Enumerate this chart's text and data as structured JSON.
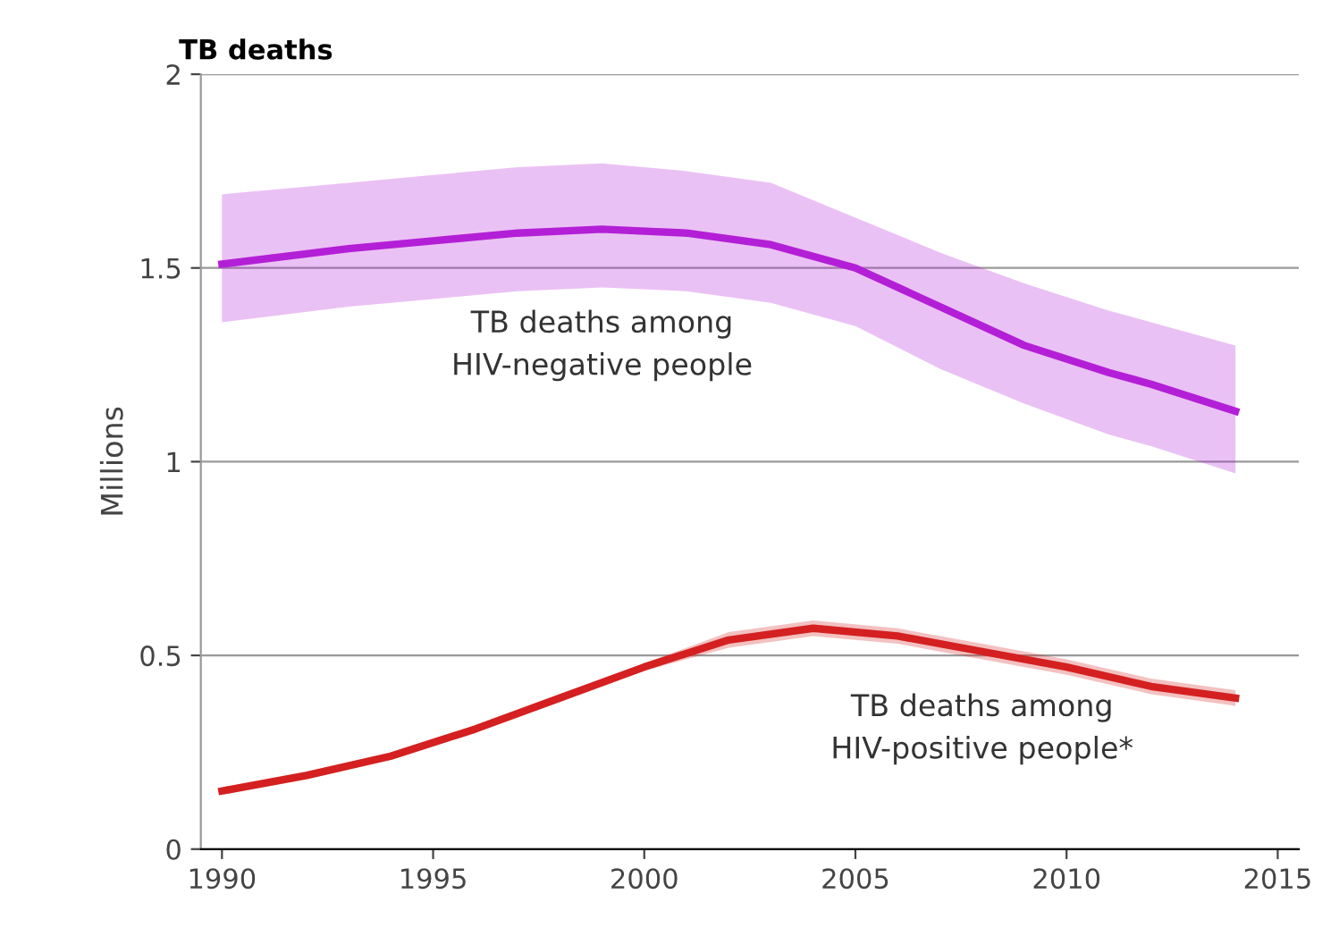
{
  "chart_data": {
    "type": "line",
    "title": "TB deaths",
    "ylabel": "Millions",
    "xlim": [
      1989.5,
      2015.5
    ],
    "xticks": [
      1990,
      1995,
      2000,
      2005,
      2010,
      2015
    ],
    "ylim": [
      0,
      2
    ],
    "yticks": [
      {
        "value": 0,
        "label": "0"
      },
      {
        "value": 0.5,
        "label": "0.5"
      },
      {
        "value": 1,
        "label": "1"
      },
      {
        "value": 1.5,
        "label": "1.5"
      },
      {
        "value": 2,
        "label": "2"
      }
    ],
    "grid": "y",
    "legend": false,
    "marker": "none",
    "line_style": "solid",
    "series": [
      {
        "name": "TB deaths among\nHIV-negative people",
        "color": "#b31fd6",
        "x": [
          1990,
          1993,
          1995,
          1997,
          1999,
          2001,
          2003,
          2005,
          2007,
          2009,
          2011,
          2012,
          2014
        ],
        "values": [
          1.51,
          1.55,
          1.57,
          1.59,
          1.6,
          1.59,
          1.56,
          1.5,
          1.4,
          1.3,
          1.23,
          1.2,
          1.13
        ],
        "lower": [
          1.36,
          1.4,
          1.42,
          1.44,
          1.45,
          1.44,
          1.41,
          1.35,
          1.24,
          1.15,
          1.07,
          1.04,
          0.97
        ],
        "upper": [
          1.69,
          1.72,
          1.74,
          1.76,
          1.77,
          1.75,
          1.72,
          1.63,
          1.54,
          1.46,
          1.39,
          1.36,
          1.3
        ]
      },
      {
        "name": "TB deaths among\nHIV-positive people*",
        "color": "#d42020",
        "x": [
          1990,
          1992,
          1994,
          1996,
          1998,
          2000,
          2002,
          2004,
          2006,
          2008,
          2010,
          2012,
          2014
        ],
        "values": [
          0.15,
          0.19,
          0.24,
          0.31,
          0.39,
          0.47,
          0.54,
          0.57,
          0.55,
          0.51,
          0.47,
          0.42,
          0.39
        ],
        "lower": [
          0.14,
          0.18,
          0.23,
          0.3,
          0.38,
          0.46,
          0.52,
          0.55,
          0.53,
          0.49,
          0.45,
          0.4,
          0.37
        ],
        "upper": [
          0.16,
          0.2,
          0.25,
          0.32,
          0.4,
          0.48,
          0.56,
          0.59,
          0.57,
          0.53,
          0.49,
          0.44,
          0.41
        ]
      }
    ]
  }
}
